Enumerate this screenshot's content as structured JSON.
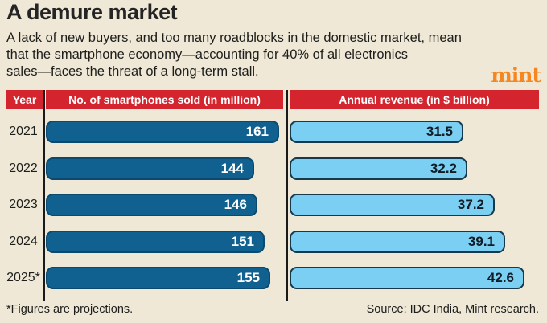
{
  "title": "A demure market",
  "subtitle_lines": [
    "A lack of new buyers, and too many roadblocks in the domestic market, mean",
    "that the smartphone economy—accounting for 40% of all electronics",
    "sales—faces the threat of a long-term stall."
  ],
  "brand": {
    "logo_text": "mint",
    "logo_color": "#f6861f"
  },
  "header": {
    "year": "Year",
    "smartphones": "No. of smartphones sold (in million)",
    "revenue": "Annual revenue (in $ billion)"
  },
  "footer": {
    "note": "*Figures are projections.",
    "source": "Source: IDC India, Mint research."
  },
  "colors": {
    "background": "#efe8d6",
    "header_red": "#d4252e",
    "header_text": "#ffffff",
    "dark_bar": "#10618f",
    "dark_bar_border": "#0b4a6e",
    "dark_bar_label": "#ffffff",
    "light_bar": "#7acff2",
    "light_bar_border": "#16394e",
    "light_bar_label": "#101c26",
    "divider": "#1a1a1a",
    "text": "#1d1d1b"
  },
  "chart_data": {
    "type": "bar",
    "orientation": "horizontal",
    "categories": [
      "2021",
      "2022",
      "2023",
      "2024",
      "2025*"
    ],
    "series": [
      {
        "name": "No. of smartphones sold (in million)",
        "values": [
          161,
          144,
          146,
          151,
          155
        ],
        "axis_max": 161,
        "color": "#10618f",
        "value_label_color": "#ffffff"
      },
      {
        "name": "Annual revenue (in $ billion)",
        "values": [
          31.5,
          32.2,
          37.2,
          39.1,
          42.6
        ],
        "axis_max": 42.6,
        "color": "#7acff2",
        "value_label_color": "#101c26"
      }
    ],
    "value_labels": "inside-end",
    "grid": false,
    "legend": false,
    "note": "*Figures are projections.",
    "source": "Source: IDC India, Mint research."
  }
}
